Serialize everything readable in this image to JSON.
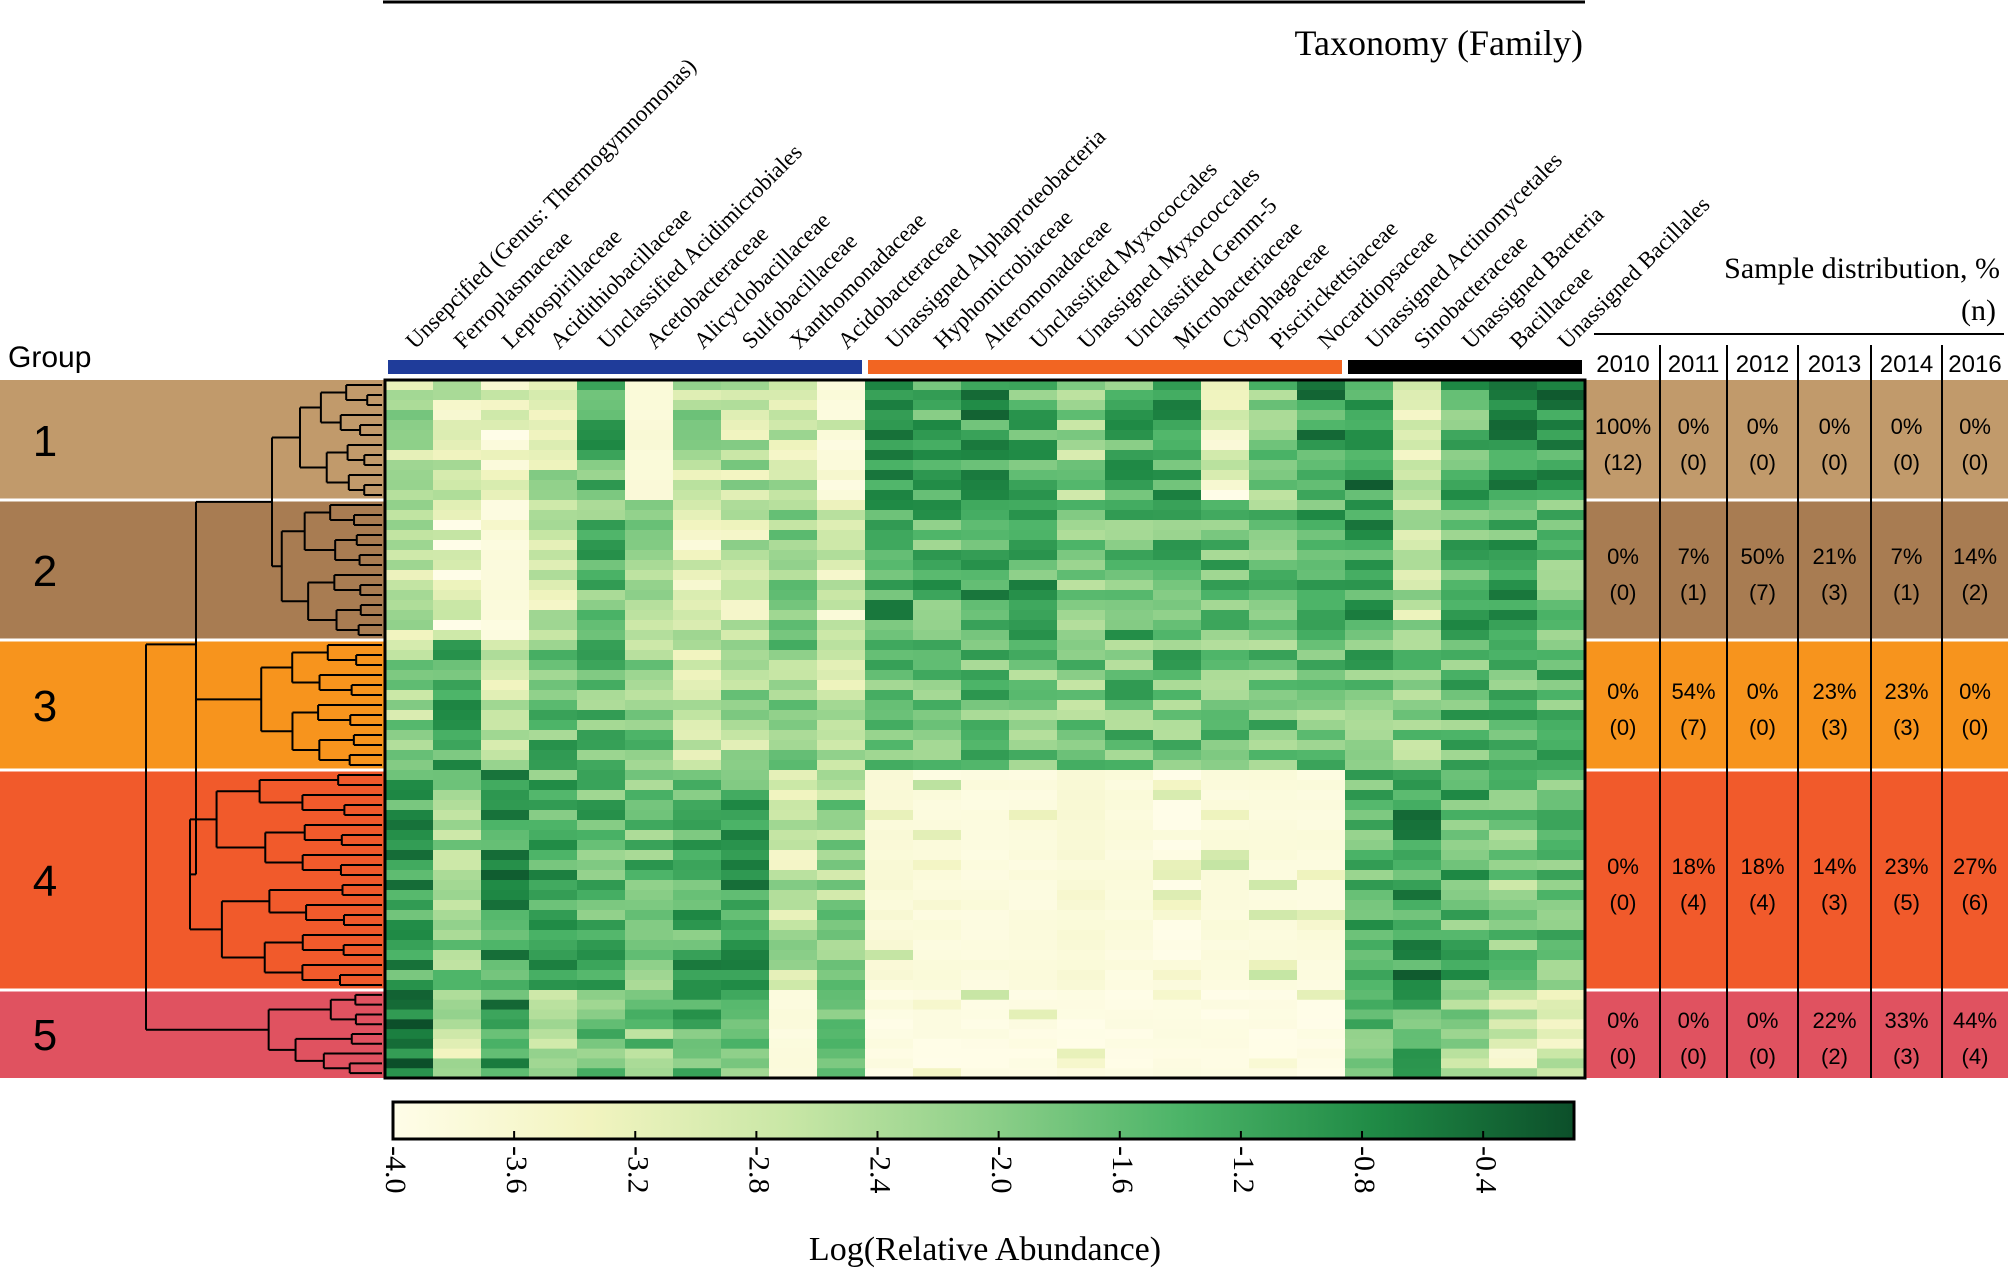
{
  "chart_data": {
    "type": "heatmap",
    "title": "Taxonomy (Family)",
    "row_header": "Group",
    "colorbar": {
      "label": "Log(Relative Abundance)",
      "min": -4.0,
      "max": -0.1,
      "ticks": [
        -4.0,
        -3.6,
        -3.2,
        -2.8,
        -2.4,
        -2.0,
        -1.6,
        -1.2,
        -0.8,
        -0.4
      ],
      "tick_labels": [
        "-4.0",
        "-3.6",
        "-3.2",
        "-2.8",
        "-2.4",
        "-2.0",
        "-1.6",
        "-1.2",
        "-0.8",
        "-0.4"
      ],
      "colors": [
        "#fffde8",
        "#f2f4c0",
        "#c9e7a6",
        "#8fd08a",
        "#4cb468",
        "#1f8a45",
        "#0c4f2a"
      ]
    },
    "taxa": [
      "Unsepcified (Genus: Thermogymnomonas)",
      "Ferroplasmaceae",
      "Leptospirillaceae",
      "Acidithiobacillaceae",
      "Unclassified Acidimicrobiales",
      "Acetobacteraceae",
      "Alicyclobacillaceae",
      "Sulfobacillaceae",
      "Xanthomonadaceae",
      "Acidobacteraceae",
      "Unassigned Alphaproteobacteria",
      "Hyphomicrobiaceae",
      "Alteromonadaceae",
      "Unclassified Myxococcales",
      "Unassigned Myxococcales",
      "Unclassified Gemm-5",
      "Microbacteriaceae",
      "Cytophagaceae",
      "Piscirickettsiaceae",
      "Nocardiopsaceae",
      "Unassigned Actinomycetales",
      "Sinobacteraceae",
      "Unassigned Bacteria",
      "Bacillaceae",
      "Unassigned Bacillales"
    ],
    "taxon_groups": [
      {
        "name": "blue",
        "color": "#1f3c9a",
        "count": 10
      },
      {
        "name": "orange",
        "color": "#f26522",
        "count": 10
      },
      {
        "name": "black",
        "color": "#000000",
        "count": 5
      }
    ],
    "groups": [
      {
        "label": "1",
        "color": "#c19a6b",
        "rows": 12,
        "profile": [
          -2.4,
          -3.0,
          -3.3,
          -2.7,
          -1.5,
          -3.8,
          -2.5,
          -2.6,
          -2.8,
          -3.9,
          -1.2,
          -1.4,
          -1.0,
          -1.5,
          -2.2,
          -1.5,
          -1.3,
          -3.2,
          -2.0,
          -1.0,
          -0.9,
          -2.8,
          -1.4,
          -0.8,
          -0.9
        ]
      },
      {
        "label": "2",
        "color": "#a87c52",
        "rows": 14,
        "profile": [
          -2.8,
          -3.4,
          -3.9,
          -3.0,
          -1.6,
          -2.4,
          -3.0,
          -2.8,
          -1.9,
          -3.0,
          -1.1,
          -1.5,
          -1.3,
          -1.4,
          -1.8,
          -1.6,
          -1.5,
          -1.6,
          -1.8,
          -1.3,
          -1.0,
          -2.5,
          -1.5,
          -1.3,
          -1.8
        ]
      },
      {
        "label": "3",
        "color": "#f7941d",
        "rows": 13,
        "profile": [
          -2.2,
          -1.2,
          -2.8,
          -1.6,
          -1.6,
          -2.0,
          -3.0,
          -2.4,
          -1.9,
          -2.8,
          -1.5,
          -1.7,
          -1.6,
          -1.8,
          -1.9,
          -1.7,
          -1.7,
          -1.8,
          -1.8,
          -1.7,
          -1.6,
          -2.0,
          -1.6,
          -1.5,
          -1.6
        ]
      },
      {
        "label": "4",
        "color": "#f15a2b",
        "rows": 22,
        "profile": [
          -1.1,
          -2.0,
          -1.0,
          -1.4,
          -1.5,
          -1.6,
          -1.3,
          -1.2,
          -2.7,
          -2.2,
          -3.8,
          -3.9,
          -3.9,
          -3.9,
          -3.8,
          -3.9,
          -3.7,
          -3.9,
          -3.9,
          -3.9,
          -1.5,
          -1.0,
          -1.5,
          -2.0,
          -1.7
        ]
      },
      {
        "label": "5",
        "color": "#e05260",
        "rows": 9,
        "profile": [
          -0.5,
          -2.8,
          -1.1,
          -2.5,
          -1.5,
          -1.8,
          -1.5,
          -1.5,
          -3.9,
          -2.1,
          -4.0,
          -4.0,
          -4.0,
          -4.0,
          -4.0,
          -4.0,
          -4.0,
          -4.0,
          -4.0,
          -4.0,
          -1.8,
          -1.5,
          -2.4,
          -3.0,
          -2.9
        ]
      }
    ],
    "sample_distribution": {
      "title": "Sample distribution, %",
      "unit": "(n)",
      "years": [
        "2010",
        "2011",
        "2012",
        "2013",
        "2014",
        "2016"
      ],
      "rows": [
        {
          "pct": [
            "100%",
            "0%",
            "0%",
            "0%",
            "0%",
            "0%"
          ],
          "n": [
            "(12)",
            "(0)",
            "(0)",
            "(0)",
            "(0)",
            "(0)"
          ]
        },
        {
          "pct": [
            "0%",
            "7%",
            "50%",
            "21%",
            "7%",
            "14%"
          ],
          "n": [
            "(0)",
            "(1)",
            "(7)",
            "(3)",
            "(1)",
            "(2)"
          ]
        },
        {
          "pct": [
            "0%",
            "54%",
            "0%",
            "23%",
            "23%",
            "0%"
          ],
          "n": [
            "(0)",
            "(7)",
            "(0)",
            "(3)",
            "(3)",
            "(0)"
          ]
        },
        {
          "pct": [
            "0%",
            "18%",
            "18%",
            "14%",
            "23%",
            "27%"
          ],
          "n": [
            "(0)",
            "(4)",
            "(4)",
            "(3)",
            "(5)",
            "(6)"
          ]
        },
        {
          "pct": [
            "0%",
            "0%",
            "0%",
            "22%",
            "33%",
            "44%"
          ],
          "n": [
            "(0)",
            "(0)",
            "(0)",
            "(2)",
            "(3)",
            "(4)"
          ]
        }
      ]
    }
  }
}
